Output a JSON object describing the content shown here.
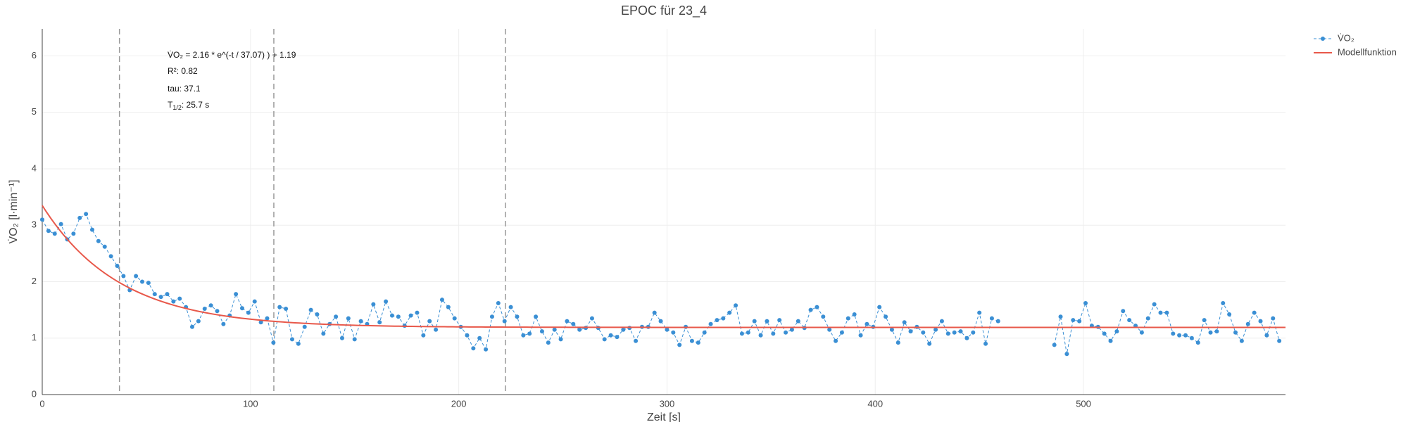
{
  "chart_data": {
    "type": "line",
    "title": "EPOC für 23_4",
    "x_label": "Zeit [s]",
    "y_label": "V̇O₂ [l·min⁻¹]",
    "annotations": [
      "V̇O₂ = 2.16 * e^(-t / 37.07) ) + 1.19",
      "R²: 0.82",
      "tau: 37.1",
      {
        "text": "T",
        "sub": "1/2",
        "rest": ": 25.7 s"
      }
    ],
    "x": [
      0,
      3,
      6,
      9,
      12,
      15,
      18,
      21,
      24,
      27,
      30,
      33,
      36,
      39,
      42,
      45,
      48,
      51,
      54,
      57,
      60,
      63,
      66,
      69,
      72,
      75,
      78,
      81,
      84,
      87,
      90,
      93,
      96,
      99,
      102,
      105,
      108,
      111,
      114,
      117,
      120,
      123,
      126,
      129,
      132,
      135,
      138,
      141,
      144,
      147,
      150,
      153,
      156,
      159,
      162,
      165,
      168,
      171,
      174,
      177,
      180,
      183,
      186,
      189,
      192,
      195,
      198,
      201,
      204,
      207,
      210,
      213,
      216,
      219,
      222,
      225,
      228,
      231,
      234,
      237,
      240,
      243,
      246,
      249,
      252,
      255,
      258,
      261,
      264,
      267,
      270,
      273,
      276,
      279,
      282,
      285,
      288,
      291,
      294,
      297,
      300,
      303,
      306,
      309,
      312,
      315,
      318,
      321,
      324,
      327,
      330,
      333,
      336,
      339,
      342,
      345,
      348,
      351,
      354,
      357,
      360,
      363,
      366,
      369,
      372,
      375,
      378,
      381,
      384,
      387,
      390,
      393,
      396,
      399,
      402,
      405,
      408,
      411,
      414,
      417,
      420,
      423,
      426,
      429,
      432,
      435,
      438,
      441,
      444,
      447,
      450,
      453,
      456,
      459,
      462,
      465,
      468,
      471,
      474,
      477,
      480,
      483,
      486,
      489,
      492,
      495,
      498,
      501,
      504,
      507,
      510,
      513,
      516,
      519,
      522,
      525,
      528,
      531,
      534,
      537,
      540,
      543,
      546,
      549,
      552,
      555,
      558,
      561,
      564,
      567,
      570,
      573,
      576,
      579,
      582,
      585,
      588,
      591,
      594
    ],
    "series": [
      {
        "name": "V̇O₂",
        "color": "#3a8fd4",
        "dash": "dash",
        "values": [
          3.1,
          2.9,
          2.85,
          3.02,
          2.75,
          2.85,
          3.13,
          3.2,
          2.92,
          2.72,
          2.62,
          2.45,
          2.28,
          2.1,
          1.85,
          2.1,
          2.0,
          1.98,
          1.78,
          1.73,
          1.78,
          1.65,
          1.7,
          1.55,
          1.2,
          1.3,
          1.52,
          1.58,
          1.48,
          1.25,
          1.4,
          1.78,
          1.53,
          1.45,
          1.65,
          1.28,
          1.35,
          0.92,
          1.55,
          1.52,
          0.98,
          0.9,
          1.2,
          1.5,
          1.42,
          1.08,
          1.25,
          1.38,
          1.0,
          1.35,
          0.98,
          1.3,
          1.25,
          1.6,
          1.28,
          1.65,
          1.4,
          1.38,
          1.22,
          1.4,
          1.45,
          1.05,
          1.3,
          1.15,
          1.68,
          1.55,
          1.35,
          1.2,
          1.05,
          0.82,
          1.0,
          0.8,
          1.38,
          1.62,
          1.3,
          1.55,
          1.38,
          1.05,
          1.08,
          1.38,
          1.12,
          0.92,
          1.15,
          0.98,
          1.3,
          1.25,
          1.15,
          1.18,
          1.35,
          1.18,
          0.98,
          1.05,
          1.02,
          1.15,
          1.18,
          0.95,
          1.2,
          1.2,
          1.45,
          1.3,
          1.15,
          1.1,
          0.88,
          1.2,
          0.95,
          0.92,
          1.1,
          1.25,
          1.32,
          1.35,
          1.45,
          1.58,
          1.08,
          1.1,
          1.3,
          1.05,
          1.3,
          1.08,
          1.32,
          1.1,
          1.15,
          1.3,
          1.18,
          1.5,
          1.55,
          1.38,
          1.15,
          0.95,
          1.1,
          1.35,
          1.42,
          1.05,
          1.25,
          1.2,
          1.55,
          1.38,
          1.15,
          0.92,
          1.28,
          1.12,
          1.2,
          1.1,
          0.9,
          1.15,
          1.3,
          1.08,
          1.1,
          1.12,
          1.0,
          1.1,
          1.45,
          0.9,
          1.35,
          1.3,
          null,
          null,
          null,
          null,
          null,
          null,
          null,
          null,
          0.88,
          1.38,
          0.72,
          1.32,
          1.3,
          1.62,
          1.22,
          1.2,
          1.08,
          0.95,
          1.12,
          1.48,
          1.32,
          1.22,
          1.1,
          1.35,
          1.6,
          1.45,
          1.45,
          1.08,
          1.05,
          1.05,
          1.0,
          0.92,
          1.32,
          1.1,
          1.12,
          1.62,
          1.42,
          1.1,
          0.95,
          1.25,
          1.45,
          1.3,
          1.05,
          1.35,
          0.95
        ]
      }
    ],
    "model": {
      "name": "Modellfunktion",
      "color": "#e8584a",
      "a": 2.16,
      "tau": 37.07,
      "c": 1.19
    },
    "vlines": [
      37.07,
      111.21,
      222.42
    ],
    "xlim": [
      0,
      597
    ],
    "ylim": [
      0,
      6.48
    ],
    "xticks": [
      0,
      100,
      200,
      300,
      400,
      500
    ],
    "yticks": [
      0,
      1,
      2,
      3,
      4,
      5,
      6
    ],
    "grid": true,
    "legend": "top-right"
  }
}
